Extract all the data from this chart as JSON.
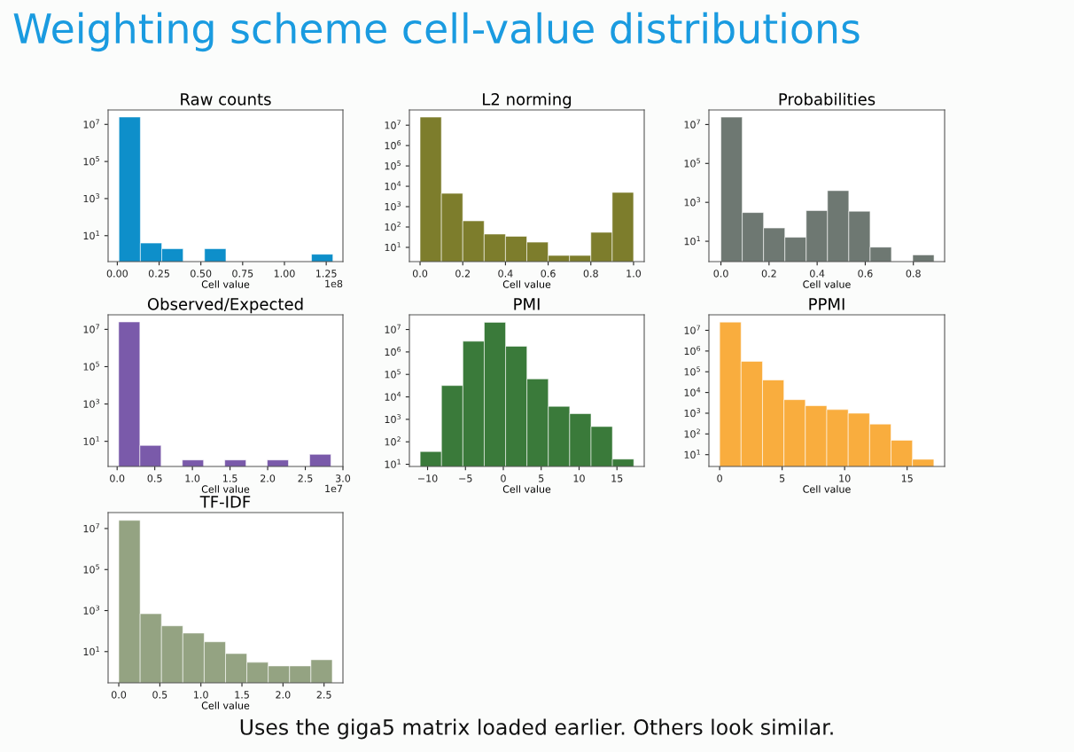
{
  "chart_data": [
    {
      "type": "histogram",
      "title": "Raw counts",
      "xlabel": "Cell value",
      "color": "#0e8fca",
      "log": "y",
      "grid": false,
      "bins": [
        0.01,
        0.138,
        0.266,
        0.394,
        0.522,
        0.65,
        0.778,
        0.906,
        1.034,
        1.162,
        1.29
      ],
      "values": [
        25000000,
        4,
        2,
        null,
        2,
        null,
        null,
        null,
        null,
        1
      ],
      "xlim": [
        -0.055,
        1.35
      ],
      "xticks": [
        {
          "value": 0,
          "label": "0.00"
        },
        {
          "value": 0.25,
          "label": "0.25"
        },
        {
          "value": 0.5,
          "label": "0.50"
        },
        {
          "value": 0.75,
          "label": "0.75"
        },
        {
          "value": 1,
          "label": "1.00"
        },
        {
          "value": 1.25,
          "label": "1.25"
        }
      ],
      "ylim": [
        0.4,
        60000000
      ],
      "yticks": [
        {
          "value": 10,
          "label": "10$^{1}$"
        },
        {
          "value": 1000,
          "label": "10$^{3}$"
        },
        {
          "value": 100000,
          "label": "10$^{5}$"
        },
        {
          "value": 10000000,
          "label": "10$^{7}$"
        }
      ],
      "annotations": [
        "1e8"
      ]
    },
    {
      "type": "histogram",
      "title": "L2 norming",
      "xlabel": "Cell value",
      "color": "#7d7d2c",
      "log": "y",
      "grid": false,
      "bins": [
        0,
        0.1,
        0.2,
        0.3,
        0.4,
        0.5,
        0.6,
        0.7,
        0.8,
        0.9,
        1.0
      ],
      "values": [
        25000000,
        4500,
        200,
        45,
        35,
        18,
        4,
        4,
        55,
        5000
      ],
      "xlim": [
        -0.05,
        1.05
      ],
      "xticks": [
        {
          "value": 0,
          "label": "0.0"
        },
        {
          "value": 0.2,
          "label": "0.2"
        },
        {
          "value": 0.4,
          "label": "0.4"
        },
        {
          "value": 0.6,
          "label": "0.6"
        },
        {
          "value": 0.8,
          "label": "0.8"
        },
        {
          "value": 1,
          "label": "1.0"
        }
      ],
      "ylim": [
        2,
        56000000
      ],
      "yticks": [
        {
          "value": 10,
          "label": "10$^{1}$"
        },
        {
          "value": 100,
          "label": "10$^{2}$"
        },
        {
          "value": 1000,
          "label": "10$^{3}$"
        },
        {
          "value": 10000,
          "label": "10$^{4}$"
        },
        {
          "value": 100000,
          "label": "10$^{5}$"
        },
        {
          "value": 1000000,
          "label": "10$^{6}$"
        },
        {
          "value": 10000000,
          "label": "10$^{7}$"
        }
      ]
    },
    {
      "type": "histogram",
      "title": "Probabilities",
      "xlabel": "Cell value",
      "color": "#6e7872",
      "log": "y",
      "grid": false,
      "bins": [
        0,
        0.0886,
        0.1772,
        0.2658,
        0.3544,
        0.443,
        0.5316,
        0.6202,
        0.7088,
        0.7974,
        0.886
      ],
      "values": [
        24000000,
        300,
        48,
        16,
        380,
        4000,
        350,
        5,
        null,
        2
      ],
      "xlim": [
        -0.05,
        0.93
      ],
      "xticks": [
        {
          "value": 0,
          "label": "0.0"
        },
        {
          "value": 0.2,
          "label": "0.2"
        },
        {
          "value": 0.4,
          "label": "0.4"
        },
        {
          "value": 0.6,
          "label": "0.6"
        },
        {
          "value": 0.8,
          "label": "0.8"
        }
      ],
      "ylim": [
        0.9,
        56000000
      ],
      "yticks": [
        {
          "value": 10,
          "label": "10$^{1}$"
        },
        {
          "value": 1000,
          "label": "10$^{3}$"
        },
        {
          "value": 100000,
          "label": "10$^{5}$"
        },
        {
          "value": 10000000,
          "label": "10$^{7}$"
        }
      ]
    },
    {
      "type": "histogram",
      "title": "Observed/Expected",
      "xlabel": "Cell value",
      "color": "#7a5aaa",
      "log": "y",
      "grid": false,
      "bins": [
        0.02,
        0.302,
        0.584,
        0.866,
        1.148,
        1.43,
        1.712,
        1.994,
        2.276,
        2.558,
        2.84
      ],
      "values": [
        25000000,
        6,
        null,
        1,
        null,
        1,
        null,
        1,
        null,
        2
      ],
      "xlim": [
        -0.12,
        3.0
      ],
      "xticks": [
        {
          "value": 0,
          "label": "0.0"
        },
        {
          "value": 0.5,
          "label": "0.5"
        },
        {
          "value": 1,
          "label": "1.0"
        },
        {
          "value": 1.5,
          "label": "1.5"
        },
        {
          "value": 2,
          "label": "2.0"
        },
        {
          "value": 2.5,
          "label": "2.5"
        },
        {
          "value": 3,
          "label": "3.0"
        }
      ],
      "ylim": [
        0.45,
        60000000
      ],
      "yticks": [
        {
          "value": 10,
          "label": "10$^{1}$"
        },
        {
          "value": 1000,
          "label": "10$^{3}$"
        },
        {
          "value": 100000,
          "label": "10$^{5}$"
        },
        {
          "value": 10000000,
          "label": "10$^{7}$"
        }
      ],
      "annotations": [
        "1e7"
      ]
    },
    {
      "type": "histogram",
      "title": "PMI",
      "xlabel": "Cell value",
      "color": "#3a7a3a",
      "log": "y",
      "grid": false,
      "bins": [
        -10.98,
        -8.16,
        -5.34,
        -2.52,
        0.3,
        3.12,
        5.94,
        8.76,
        11.58,
        14.4,
        17.22
      ],
      "values": [
        37,
        32000,
        3000000,
        21000000,
        1800000,
        63000,
        3800,
        1800,
        480,
        17
      ],
      "xlim": [
        -12.4,
        18.6
      ],
      "xticks": [
        {
          "value": -10,
          "label": "−10"
        },
        {
          "value": -5,
          "label": "−5"
        },
        0,
        5,
        10,
        15
      ],
      "ylim": [
        8,
        45000000
      ],
      "yticks": [
        {
          "value": 10,
          "label": "10$^{1}$"
        },
        {
          "value": 100,
          "label": "10$^{2}$"
        },
        {
          "value": 1000,
          "label": "10$^{3}$"
        },
        {
          "value": 10000,
          "label": "10$^{4}$"
        },
        {
          "value": 100000,
          "label": "10$^{5}$"
        },
        {
          "value": 1000000,
          "label": "10$^{6}$"
        },
        {
          "value": 10000000,
          "label": "10$^{7}$"
        }
      ]
    },
    {
      "type": "histogram",
      "title": "PPMI",
      "xlabel": "Cell value",
      "color": "#f9ad3e",
      "log": "y",
      "grid": false,
      "bins": [
        0,
        1.714,
        3.428,
        5.142,
        6.856,
        8.57,
        10.284,
        11.998,
        13.712,
        15.426,
        17.14
      ],
      "values": [
        25000000,
        320000,
        40000,
        4500,
        2300,
        1500,
        1000,
        300,
        50,
        6
      ],
      "xlim": [
        -0.86,
        18.0
      ],
      "xticks": [
        0,
        5,
        10,
        15
      ],
      "ylim": [
        2.7,
        56000000
      ],
      "yticks": [
        {
          "value": 10,
          "label": "10$^{1}$"
        },
        {
          "value": 100,
          "label": "10$^{2}$"
        },
        {
          "value": 1000,
          "label": "10$^{3}$"
        },
        {
          "value": 10000,
          "label": "10$^{4}$"
        },
        {
          "value": 100000,
          "label": "10$^{5}$"
        },
        {
          "value": 1000000,
          "label": "10$^{6}$"
        },
        {
          "value": 10000000,
          "label": "10$^{7}$"
        }
      ]
    },
    {
      "type": "histogram",
      "title": "TF-IDF",
      "xlabel": "Cell value",
      "color": "#94a382",
      "log": "y",
      "grid": false,
      "bins": [
        0,
        0.26,
        0.52,
        0.78,
        1.04,
        1.3,
        1.56,
        1.82,
        2.08,
        2.34,
        2.6
      ],
      "values": [
        25000000,
        700,
        180,
        80,
        30,
        8,
        3,
        2,
        2,
        4
      ],
      "xlim": [
        -0.13,
        2.73
      ],
      "xticks": [
        {
          "value": 0,
          "label": "0.0"
        },
        {
          "value": 0.5,
          "label": "0.5"
        },
        {
          "value": 1,
          "label": "1.0"
        },
        {
          "value": 1.5,
          "label": "1.5"
        },
        {
          "value": 2,
          "label": "2.0"
        },
        {
          "value": 2.5,
          "label": "2.5"
        }
      ],
      "ylim": [
        0.3,
        60000000
      ],
      "yticks": [
        {
          "value": 10,
          "label": "10$^{1}$"
        },
        {
          "value": 1000,
          "label": "10$^{3}$"
        },
        {
          "value": 100000,
          "label": "10$^{5}$"
        },
        {
          "value": 10000000,
          "label": "10$^{7}$"
        }
      ]
    },
    {
      "type": "other",
      "title": "Weighting scheme cell-value distributions",
      "color": "#1a9be0",
      "annotations": [
        "Uses the giga5 matrix loaded earlier. Others look similar."
      ]
    }
  ]
}
